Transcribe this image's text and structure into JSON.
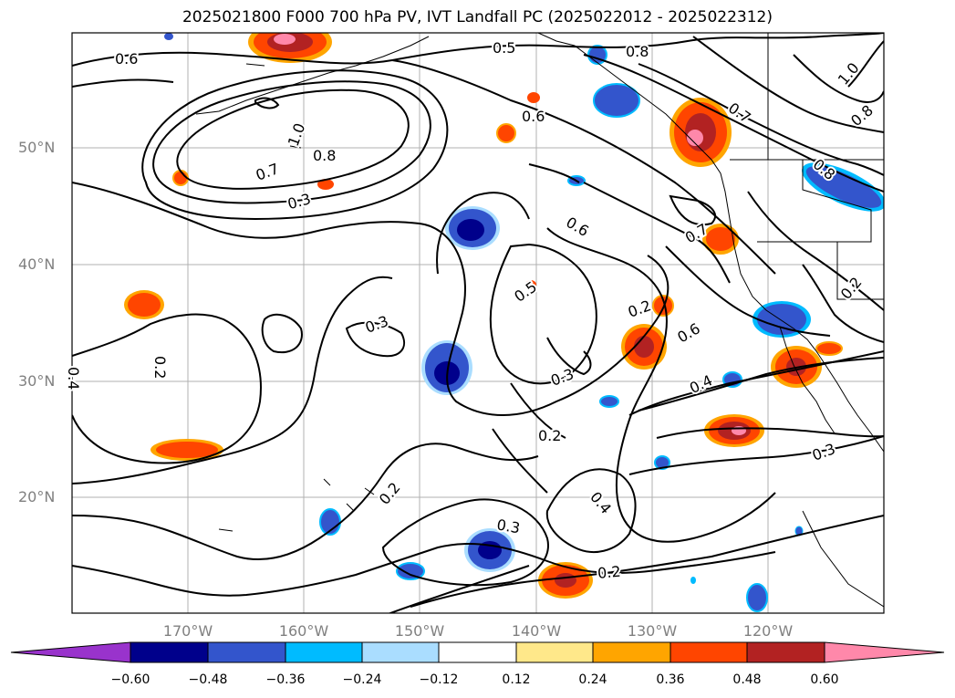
{
  "title": "2025021800 F000 700 hPa PV, IVT Landfall PC (2025022012 - 2025022312)",
  "axes": {
    "lat_ticks": [
      "50°N",
      "40°N",
      "30°N",
      "20°N"
    ],
    "lon_ticks": [
      "170°W",
      "160°W",
      "150°W",
      "140°W",
      "130°W",
      "120°W"
    ]
  },
  "contour_labels": [
    "0.6",
    "0.5",
    "0.8",
    "1.0",
    "0.8",
    "0.7",
    "0.6",
    "1.0",
    "0.8",
    "0.7",
    "0.3",
    "0.8",
    "0.6",
    "0.7",
    "0.5",
    "0.2",
    "0.6",
    "0.2",
    "0.3",
    "0.4",
    "0.3",
    "0.4",
    "0.2",
    "0.2",
    "0.3",
    "0.4",
    "0.3",
    "0.2",
    "0.2"
  ],
  "colorbar": {
    "tick_labels": [
      "−0.60",
      "−0.48",
      "−0.36",
      "−0.24",
      "−0.12",
      "0.12",
      "0.24",
      "0.36",
      "0.48",
      "0.60"
    ],
    "colors": [
      "#9933cc",
      "#00008b",
      "#3355cc",
      "#00bbff",
      "#aaddff",
      "#ffffff",
      "#ffe88a",
      "#ffa500",
      "#ff4500",
      "#b22222",
      "#ff88aa"
    ]
  }
}
